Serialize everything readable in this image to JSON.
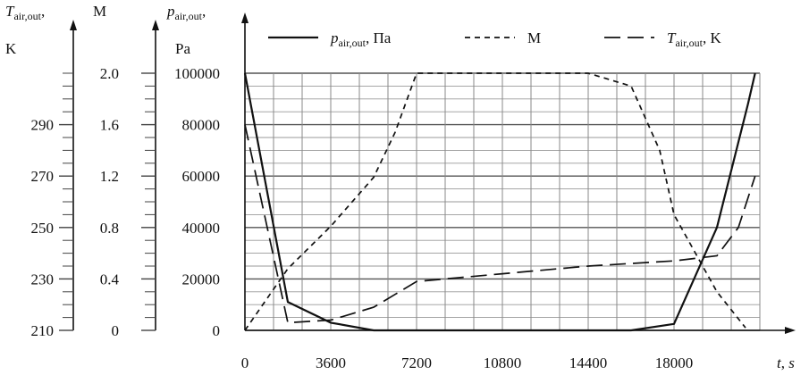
{
  "chart_data": {
    "type": "line",
    "x": {
      "label_symbol": "t",
      "label_unit": "s",
      "ticks": [
        0,
        3600,
        7200,
        10800,
        14400,
        18000
      ],
      "range": [
        0,
        21600
      ],
      "minor_step": 1200
    },
    "axes": [
      {
        "id": "T",
        "symbol": "T",
        "subscript": "air,out",
        "suffix": ",",
        "unit": "K",
        "range": [
          210,
          310
        ],
        "ticks": [
          210,
          230,
          250,
          270,
          290
        ],
        "minor_step": 5
      },
      {
        "id": "M",
        "symbol": "M",
        "unit": "",
        "range": [
          0,
          2.0
        ],
        "ticks": [
          "0",
          "0.4",
          "0.8",
          "1.2",
          "1.6",
          "2.0"
        ],
        "minor_step": 0.1
      },
      {
        "id": "p",
        "symbol": "p",
        "subscript": "air,out",
        "suffix": ",",
        "unit": "Pa",
        "range": [
          0,
          100000
        ],
        "ticks": [
          0,
          20000,
          40000,
          60000,
          80000,
          100000
        ],
        "minor_step": 5000
      }
    ],
    "grid": true,
    "legend": [
      {
        "series": "p",
        "symbol": "p",
        "subscript": "air,out",
        "text": ", Па"
      },
      {
        "series": "M",
        "symbol": "",
        "subscript": "",
        "text": "M"
      },
      {
        "series": "T",
        "symbol": "T",
        "subscript": "air,out",
        "text": ", K"
      }
    ],
    "series": [
      {
        "id": "p",
        "axis": "p",
        "style": "solid",
        "points": [
          [
            0,
            100000
          ],
          [
            1800,
            11000
          ],
          [
            3600,
            3000
          ],
          [
            5400,
            0
          ],
          [
            7200,
            0
          ],
          [
            10800,
            0
          ],
          [
            14400,
            0
          ],
          [
            16200,
            0
          ],
          [
            18000,
            2500
          ],
          [
            19800,
            40000
          ],
          [
            21100,
            88000
          ],
          [
            21400,
            100000
          ]
        ]
      },
      {
        "id": "M",
        "axis": "M",
        "style": "short-dash",
        "points": [
          [
            0,
            0
          ],
          [
            1800,
            0.48
          ],
          [
            3600,
            0.81
          ],
          [
            5400,
            1.19
          ],
          [
            6300,
            1.54
          ],
          [
            7200,
            2.0
          ],
          [
            10800,
            2.0
          ],
          [
            14400,
            2.0
          ],
          [
            16200,
            1.9
          ],
          [
            17400,
            1.4
          ],
          [
            18000,
            0.9
          ],
          [
            19800,
            0.3
          ],
          [
            21000,
            0.02
          ]
        ]
      },
      {
        "id": "T",
        "axis": "T",
        "style": "long-dash",
        "points": [
          [
            0,
            290
          ],
          [
            1800,
            213
          ],
          [
            3600,
            214
          ],
          [
            5400,
            219
          ],
          [
            6300,
            224
          ],
          [
            7200,
            229
          ],
          [
            10800,
            232
          ],
          [
            14400,
            235
          ],
          [
            16200,
            236
          ],
          [
            18000,
            237
          ],
          [
            19800,
            239
          ],
          [
            20700,
            250
          ],
          [
            21400,
            270
          ]
        ]
      }
    ]
  }
}
